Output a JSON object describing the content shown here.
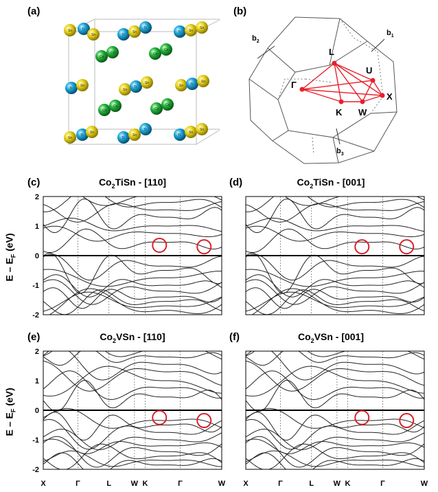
{
  "labels": {
    "a": "(a)",
    "b": "(b)",
    "c": "(c)",
    "d": "(d)",
    "e": "(e)",
    "f": "(f)"
  },
  "crystal": {
    "atoms": {
      "sn": "Sn",
      "ti": "Ti",
      "co": "Co"
    },
    "colors": {
      "sn": "#e8d21a",
      "ti": "#1aa6d9",
      "co": "#22b43a"
    }
  },
  "brillouin": {
    "b1": "b",
    "b1_sub": "1",
    "b2": "b",
    "b2_sub": "2",
    "b3": "b",
    "b3_sub": "3",
    "points": {
      "L": "L",
      "G": "Γ",
      "U": "U",
      "X": "X",
      "K": "K",
      "W": "W"
    },
    "path_color": "#e8202a"
  },
  "titles": {
    "c": {
      "pre": "Co",
      "sub": "2",
      "post": "TiSn - [110]"
    },
    "d": {
      "pre": "Co",
      "sub": "2",
      "post": "TiSn - [001]"
    },
    "e": {
      "pre": "Co",
      "sub": "2",
      "post": "VSn - [110]"
    },
    "f": {
      "pre": "Co",
      "sub": "2",
      "post": "VSn - [001]"
    }
  },
  "ylabel": {
    "pre": "E – E",
    "sub": "F",
    "post": " (eV)"
  },
  "chart_data": [
    {
      "type": "line",
      "panel": "c",
      "ylim": [
        -2,
        2
      ],
      "yticks": [
        "2",
        "1",
        "0",
        "-1",
        "-2"
      ],
      "kpath": [
        "X",
        "Γ",
        "L",
        "W",
        "K",
        "Γ",
        "W"
      ],
      "kpos": [
        0,
        0.194,
        0.368,
        0.511,
        0.571,
        0.767,
        1
      ],
      "markers": [
        {
          "k": 0.651,
          "E": 0.35
        },
        {
          "k": 0.901,
          "E": 0.3
        }
      ]
    },
    {
      "type": "line",
      "panel": "d",
      "ylim": [
        -2,
        2
      ],
      "yticks": [],
      "kpath": [
        "X",
        "Γ",
        "L",
        "W",
        "K",
        "Γ",
        "W"
      ],
      "kpos": [
        0,
        0.194,
        0.368,
        0.511,
        0.571,
        0.767,
        1
      ],
      "markers": [
        {
          "k": 0.651,
          "E": 0.3
        },
        {
          "k": 0.901,
          "E": 0.3
        }
      ]
    },
    {
      "type": "line",
      "panel": "e",
      "ylim": [
        -2,
        2
      ],
      "yticks": [
        "2",
        "1",
        "0",
        "-1",
        "-2"
      ],
      "kpath": [
        "X",
        "Γ",
        "L",
        "W",
        "K",
        "Γ",
        "W"
      ],
      "kpos": [
        0,
        0.194,
        0.368,
        0.511,
        0.571,
        0.767,
        1
      ],
      "markers": [
        {
          "k": 0.651,
          "E": -0.25
        },
        {
          "k": 0.901,
          "E": -0.35
        }
      ]
    },
    {
      "type": "line",
      "panel": "f",
      "ylim": [
        -2,
        2
      ],
      "yticks": [],
      "kpath": [
        "X",
        "Γ",
        "L",
        "W",
        "K",
        "Γ",
        "W"
      ],
      "kpos": [
        0,
        0.194,
        0.368,
        0.511,
        0.571,
        0.767,
        1
      ],
      "markers": [
        {
          "k": 0.651,
          "E": -0.25
        },
        {
          "k": 0.901,
          "E": -0.35
        }
      ]
    }
  ]
}
